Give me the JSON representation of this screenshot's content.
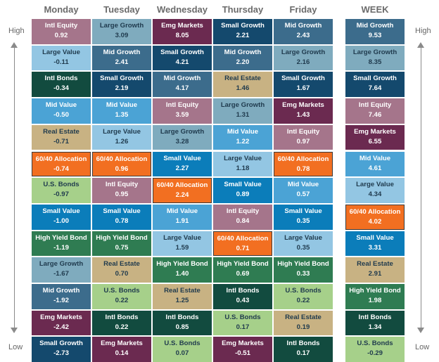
{
  "columns": [
    "Monday",
    "Tuesday",
    "Wednesday",
    "Thursday",
    "Friday",
    "WEEK"
  ],
  "axis_labels": {
    "high": "High",
    "low": "Low"
  },
  "colors": {
    "Intl Equity": "#a5758b",
    "Large Value": "#93c6e3",
    "Intl Bonds": "#124b3f",
    "Mid Value": "#4ba3d5",
    "Real Estate": "#c8b283",
    "60/40 Allocation": "#f26f21",
    "U.S. Bonds": "#a6d08a",
    "Small Value": "#0b7dba",
    "High Yield Bond": "#2f7c52",
    "Large Growth": "#7fabbe",
    "Mid Growth": "#3c6c8c",
    "Emg Markets": "#6b2a50",
    "Small Growth": "#14496d"
  },
  "chart_data": {
    "type": "table",
    "title": "",
    "ranking": "High to Low",
    "series": [
      {
        "name": "Monday",
        "cells": [
          {
            "asset": "Intl Equity",
            "value": "0.92"
          },
          {
            "asset": "Large Value",
            "value": "-0.11"
          },
          {
            "asset": "Intl Bonds",
            "value": "-0.34"
          },
          {
            "asset": "Mid Value",
            "value": "-0.50"
          },
          {
            "asset": "Real Estate",
            "value": "-0.71"
          },
          {
            "asset": "60/40 Allocation",
            "value": "-0.74"
          },
          {
            "asset": "U.S. Bonds",
            "value": "-0.97"
          },
          {
            "asset": "Small Value",
            "value": "-1.00"
          },
          {
            "asset": "High Yield Bond",
            "value": "-1.19"
          },
          {
            "asset": "Large Growth",
            "value": "-1.67"
          },
          {
            "asset": "Mid Growth",
            "value": "-1.92"
          },
          {
            "asset": "Emg Markets",
            "value": "-2.42"
          },
          {
            "asset": "Small Growth",
            "value": "-2.73"
          }
        ]
      },
      {
        "name": "Tuesday",
        "cells": [
          {
            "asset": "Large Growth",
            "value": "3.09"
          },
          {
            "asset": "Mid Growth",
            "value": "2.41"
          },
          {
            "asset": "Small Growth",
            "value": "2.19"
          },
          {
            "asset": "Mid Value",
            "value": "1.35"
          },
          {
            "asset": "Large Value",
            "value": "1.26"
          },
          {
            "asset": "60/40 Allocation",
            "value": "0.96"
          },
          {
            "asset": "Intl Equity",
            "value": "0.95"
          },
          {
            "asset": "Small Value",
            "value": "0.78"
          },
          {
            "asset": "High Yield Bond",
            "value": "0.75"
          },
          {
            "asset": "Real Estate",
            "value": "0.70"
          },
          {
            "asset": "U.S. Bonds",
            "value": "0.22"
          },
          {
            "asset": "Intl Bonds",
            "value": "0.22"
          },
          {
            "asset": "Emg Markets",
            "value": "0.14"
          }
        ]
      },
      {
        "name": "Wednesday",
        "cells": [
          {
            "asset": "Emg Markets",
            "value": "8.05"
          },
          {
            "asset": "Small Growth",
            "value": "4.21"
          },
          {
            "asset": "Mid Growth",
            "value": "4.17"
          },
          {
            "asset": "Intl Equity",
            "value": "3.59"
          },
          {
            "asset": "Large Growth",
            "value": "3.28"
          },
          {
            "asset": "Small Value",
            "value": "2.27"
          },
          {
            "asset": "60/40 Allocation",
            "value": "2.24"
          },
          {
            "asset": "Mid Value",
            "value": "1.91"
          },
          {
            "asset": "Large Value",
            "value": "1.59"
          },
          {
            "asset": "High Yield Bond",
            "value": "1.40"
          },
          {
            "asset": "Real Estate",
            "value": "1.25"
          },
          {
            "asset": "Intl Bonds",
            "value": "0.85"
          },
          {
            "asset": "U.S. Bonds",
            "value": "0.07"
          }
        ]
      },
      {
        "name": "Thursday",
        "cells": [
          {
            "asset": "Small Growth",
            "value": "2.21"
          },
          {
            "asset": "Mid Growth",
            "value": "2.20"
          },
          {
            "asset": "Real Estate",
            "value": "1.46"
          },
          {
            "asset": "Large Growth",
            "value": "1.31"
          },
          {
            "asset": "Mid Value",
            "value": "1.22"
          },
          {
            "asset": "Large Value",
            "value": "1.18"
          },
          {
            "asset": "Small Value",
            "value": "0.89"
          },
          {
            "asset": "Intl Equity",
            "value": "0.84"
          },
          {
            "asset": "60/40 Allocation",
            "value": "0.71"
          },
          {
            "asset": "High Yield Bond",
            "value": "0.69"
          },
          {
            "asset": "Intl Bonds",
            "value": "0.43"
          },
          {
            "asset": "U.S. Bonds",
            "value": "0.17"
          },
          {
            "asset": "Emg Markets",
            "value": "-0.51"
          }
        ]
      },
      {
        "name": "Friday",
        "cells": [
          {
            "asset": "Mid Growth",
            "value": "2.43"
          },
          {
            "asset": "Large Growth",
            "value": "2.16"
          },
          {
            "asset": "Small Growth",
            "value": "1.67"
          },
          {
            "asset": "Emg Markets",
            "value": "1.43"
          },
          {
            "asset": "Intl Equity",
            "value": "0.97"
          },
          {
            "asset": "60/40 Allocation",
            "value": "0.78"
          },
          {
            "asset": "Mid Value",
            "value": "0.57"
          },
          {
            "asset": "Small Value",
            "value": "0.35"
          },
          {
            "asset": "Large Value",
            "value": "0.35"
          },
          {
            "asset": "High Yield Bond",
            "value": "0.33"
          },
          {
            "asset": "U.S. Bonds",
            "value": "0.22"
          },
          {
            "asset": "Real Estate",
            "value": "0.19"
          },
          {
            "asset": "Intl Bonds",
            "value": "0.17"
          }
        ]
      },
      {
        "name": "WEEK",
        "cells": [
          {
            "asset": "Mid Growth",
            "value": "9.53"
          },
          {
            "asset": "Large Growth",
            "value": "8.35"
          },
          {
            "asset": "Small Growth",
            "value": "7.64"
          },
          {
            "asset": "Intl Equity",
            "value": "7.46"
          },
          {
            "asset": "Emg Markets",
            "value": "6.55"
          },
          {
            "asset": "Mid Value",
            "value": "4.61"
          },
          {
            "asset": "Large Value",
            "value": "4.34"
          },
          {
            "asset": "60/40 Allocation",
            "value": "4.02"
          },
          {
            "asset": "Small Value",
            "value": "3.31"
          },
          {
            "asset": "Real Estate",
            "value": "2.91"
          },
          {
            "asset": "High Yield Bond",
            "value": "1.98"
          },
          {
            "asset": "Intl Bonds",
            "value": "1.34"
          },
          {
            "asset": "U.S. Bonds",
            "value": "-0.29"
          }
        ]
      }
    ]
  }
}
